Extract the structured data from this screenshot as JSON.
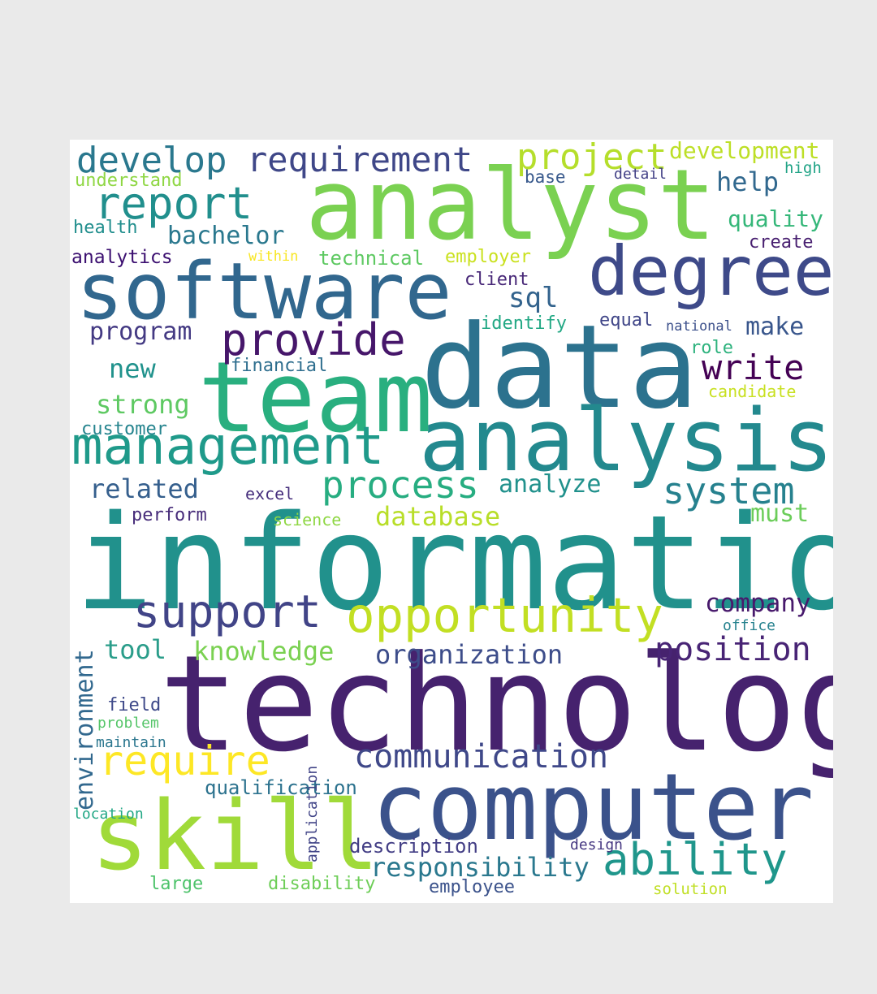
{
  "word_cloud": {
    "words": [
      {
        "text": "information",
        "color": "#21918c"
      },
      {
        "text": "technology",
        "color": "#46226e"
      },
      {
        "text": "data",
        "color": "#2c728e"
      },
      {
        "text": "analyst",
        "color": "#7ad151"
      },
      {
        "text": "analysis",
        "color": "#23898e"
      },
      {
        "text": "software",
        "color": "#31678e"
      },
      {
        "text": "team",
        "color": "#29af7f"
      },
      {
        "text": "computer",
        "color": "#3b528b"
      },
      {
        "text": "skill",
        "color": "#a0da39"
      },
      {
        "text": "degree",
        "color": "#3e4a89"
      },
      {
        "text": "management",
        "color": "#1f9a8a"
      },
      {
        "text": "opportunity",
        "color": "#c2df23"
      },
      {
        "text": "support",
        "color": "#414487"
      },
      {
        "text": "provide",
        "color": "#46166a"
      },
      {
        "text": "report",
        "color": "#218f8d"
      },
      {
        "text": "develop",
        "color": "#2a788e"
      },
      {
        "text": "requirement",
        "color": "#3f4788"
      },
      {
        "text": "project",
        "color": "#b5de2b"
      },
      {
        "text": "process",
        "color": "#27ad81"
      },
      {
        "text": "system",
        "color": "#26818e"
      },
      {
        "text": "ability",
        "color": "#1f968b"
      },
      {
        "text": "require",
        "color": "#fde725"
      },
      {
        "text": "communication",
        "color": "#3f4889"
      },
      {
        "text": "position",
        "color": "#482475"
      },
      {
        "text": "write",
        "color": "#440154"
      },
      {
        "text": "responsibility",
        "color": "#2a788e"
      },
      {
        "text": "organization",
        "color": "#3d4d8a"
      },
      {
        "text": "development",
        "color": "#bddf26"
      },
      {
        "text": "knowledge",
        "color": "#7ad151"
      },
      {
        "text": "database",
        "color": "#b8de29"
      },
      {
        "text": "company",
        "color": "#481a6c"
      },
      {
        "text": "environment",
        "color": "#31688e"
      },
      {
        "text": "strong",
        "color": "#5ec962"
      },
      {
        "text": "related",
        "color": "#355f8d"
      },
      {
        "text": "program",
        "color": "#443a83"
      },
      {
        "text": "quality",
        "color": "#35b779"
      },
      {
        "text": "bachelor",
        "color": "#2a788e"
      },
      {
        "text": "help",
        "color": "#31688e"
      },
      {
        "text": "tool",
        "color": "#2a9d8a"
      },
      {
        "text": "make",
        "color": "#39568c"
      },
      {
        "text": "analyze",
        "color": "#21918c"
      },
      {
        "text": "sql",
        "color": "#33638d"
      },
      {
        "text": "must",
        "color": "#6ccd5a"
      },
      {
        "text": "new",
        "color": "#20928c"
      },
      {
        "text": "technical",
        "color": "#5ec962"
      },
      {
        "text": "qualification",
        "color": "#2c728e"
      },
      {
        "text": "description",
        "color": "#433e85"
      },
      {
        "text": "employer",
        "color": "#cae11f"
      },
      {
        "text": "understand",
        "color": "#8fd744"
      },
      {
        "text": "analytics",
        "color": "#3b0f70"
      },
      {
        "text": "create",
        "color": "#481f70"
      },
      {
        "text": "client",
        "color": "#482878"
      },
      {
        "text": "identify",
        "color": "#22a884"
      },
      {
        "text": "equal",
        "color": "#404688"
      },
      {
        "text": "health",
        "color": "#218e8d"
      },
      {
        "text": "perform",
        "color": "#472c7a"
      },
      {
        "text": "role",
        "color": "#2db27d"
      },
      {
        "text": "candidate",
        "color": "#c8e020"
      },
      {
        "text": "customer",
        "color": "#25848e"
      },
      {
        "text": "financial",
        "color": "#2e6e8e"
      },
      {
        "text": "excel",
        "color": "#472f7d"
      },
      {
        "text": "science",
        "color": "#8fd744"
      },
      {
        "text": "base",
        "color": "#38598c"
      },
      {
        "text": "detail",
        "color": "#424086"
      },
      {
        "text": "high",
        "color": "#20a386"
      },
      {
        "text": "within",
        "color": "#f8e621"
      },
      {
        "text": "national",
        "color": "#3c508b"
      },
      {
        "text": "office",
        "color": "#26828e"
      },
      {
        "text": "field",
        "color": "#3e4989"
      },
      {
        "text": "problem",
        "color": "#54c568"
      },
      {
        "text": "maintain",
        "color": "#2a768e"
      },
      {
        "text": "location",
        "color": "#22a785"
      },
      {
        "text": "design",
        "color": "#453781"
      },
      {
        "text": "large",
        "color": "#4ec36b"
      },
      {
        "text": "disability",
        "color": "#6ece58"
      },
      {
        "text": "employee",
        "color": "#3b528b"
      },
      {
        "text": "solution",
        "color": "#c0df25"
      },
      {
        "text": "application",
        "color": "#414487"
      }
    ]
  }
}
